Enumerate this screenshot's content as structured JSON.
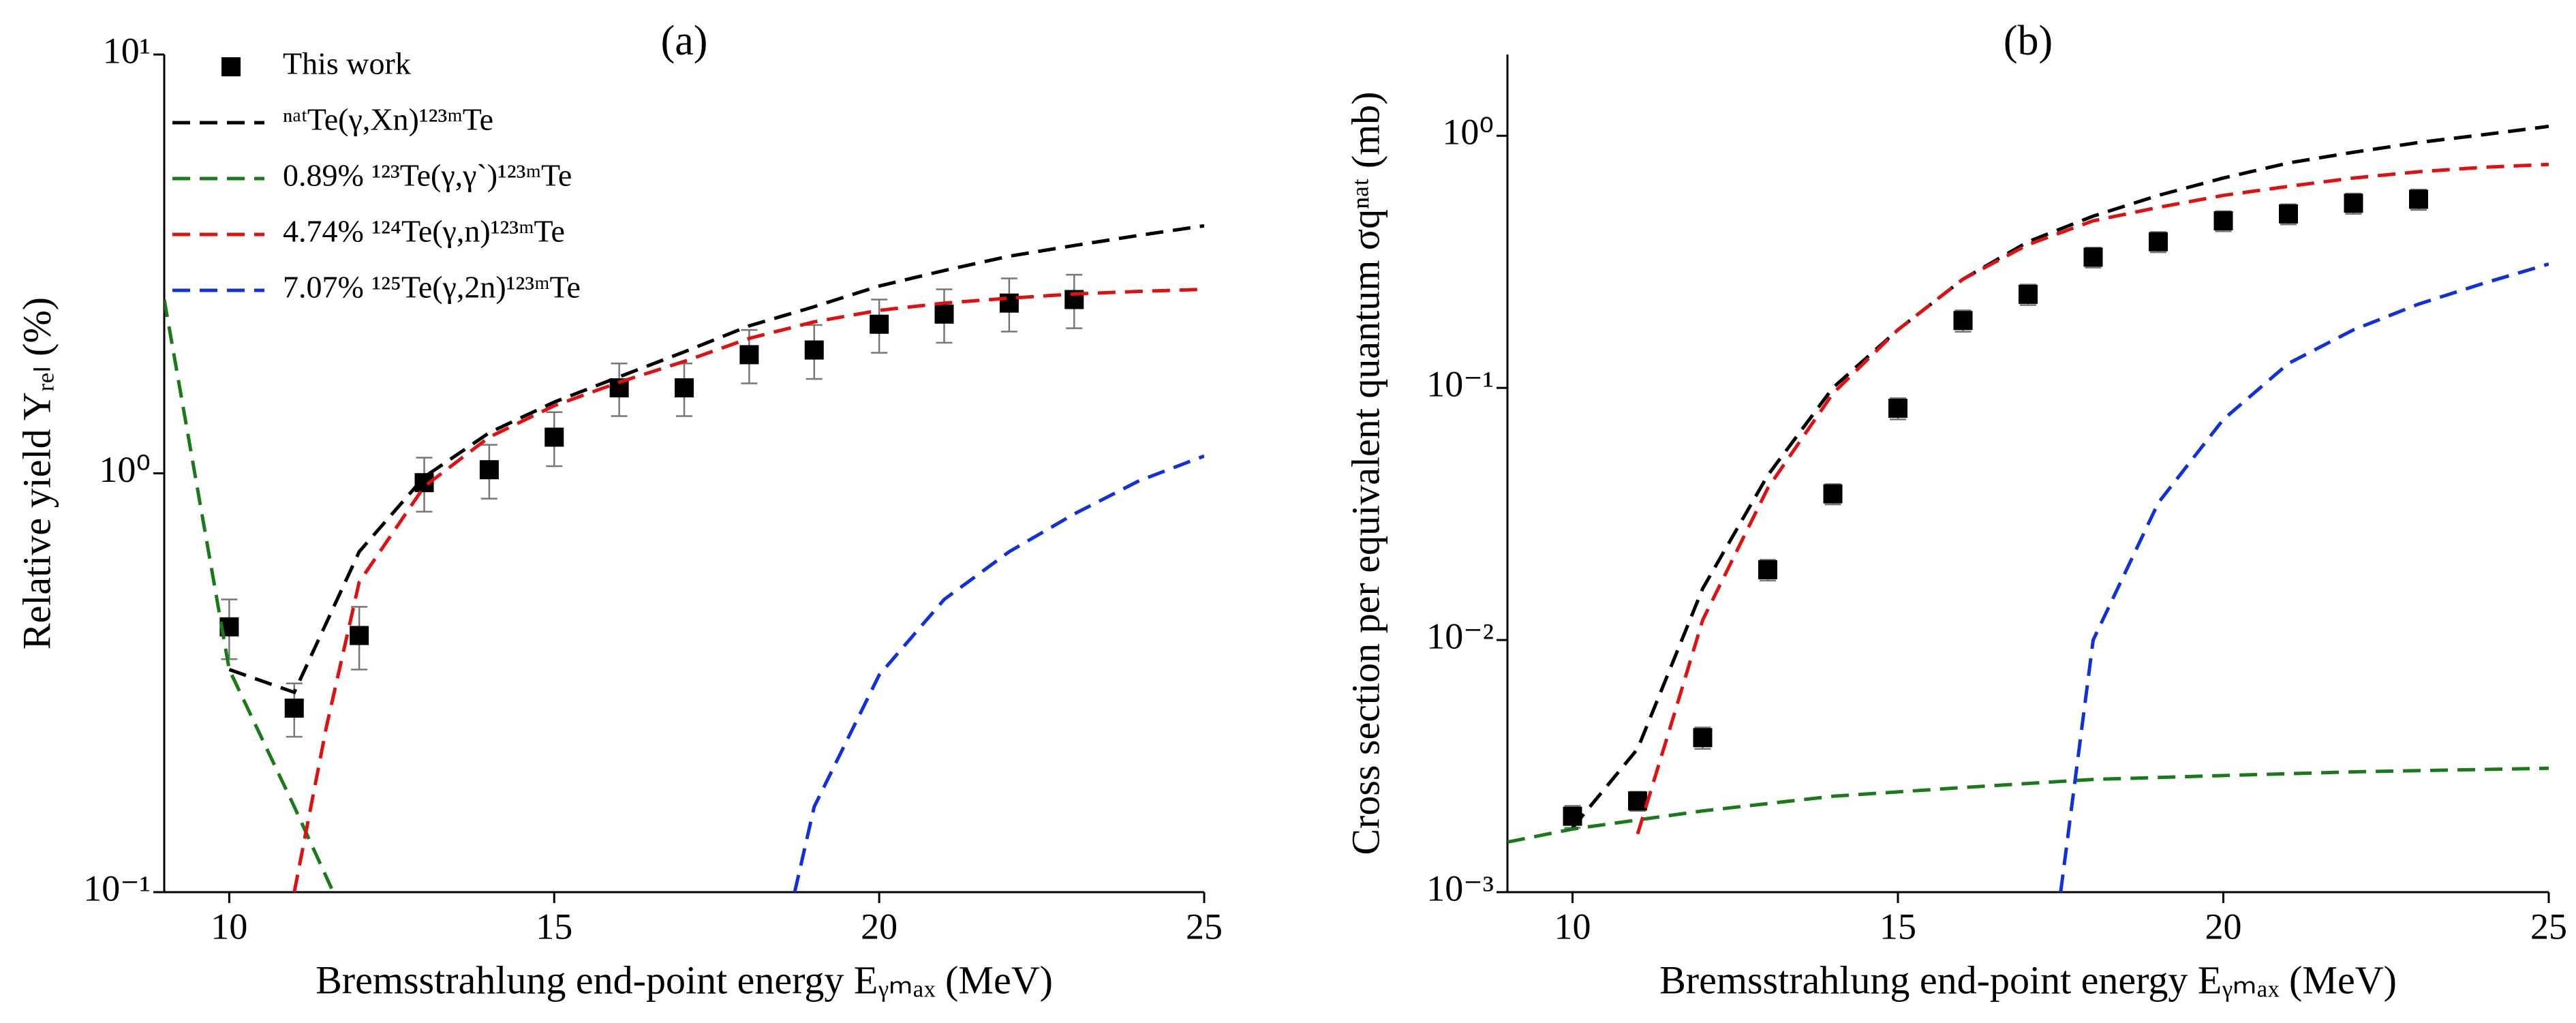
{
  "chart_data": [
    {
      "type": "line",
      "title": "(a)",
      "x_label": "Bremsstrahlung end-point energy Eᵧₘₐₓ (MeV)",
      "y_label": "Relative yield Yᵣₑₗ (%)",
      "xlim": [
        9,
        25
      ],
      "xticks": [
        10,
        15,
        20,
        25
      ],
      "ylim": [
        0.1,
        10
      ],
      "log_y": true,
      "yticks": [
        {
          "value": 0.1,
          "label": "10⁻¹"
        },
        {
          "value": 1,
          "label": "10⁰"
        },
        {
          "value": 10,
          "label": "10¹"
        }
      ],
      "legend": "upper left",
      "series": [
        {
          "name": "This work",
          "style": "points",
          "color": "#000000",
          "x": [
            10,
            11,
            12,
            13,
            14,
            15,
            16,
            17,
            18,
            19,
            20,
            21,
            22,
            23
          ],
          "values": [
            0.43,
            0.275,
            0.41,
            0.95,
            1.02,
            1.22,
            1.6,
            1.6,
            1.92,
            1.97,
            2.27,
            2.4,
            2.55,
            2.6
          ],
          "errors": [
            0.07,
            0.04,
            0.07,
            0.14,
            0.15,
            0.18,
            0.23,
            0.23,
            0.28,
            0.29,
            0.33,
            0.35,
            0.37,
            0.38
          ]
        },
        {
          "name": "ⁿᵃᵗTe(γ,Xn)¹²³ᵐTe",
          "style": "dashed",
          "color": "#000000",
          "x": [
            10,
            11,
            12,
            13,
            14,
            15,
            16,
            17,
            18,
            19,
            20,
            21,
            22,
            23,
            24,
            25
          ],
          "values": [
            0.34,
            0.3,
            0.65,
            0.98,
            1.25,
            1.48,
            1.7,
            1.95,
            2.25,
            2.5,
            2.8,
            3.05,
            3.3,
            3.5,
            3.7,
            3.9
          ]
        },
        {
          "name": "0.89% ¹²³Te(γ,γ`)¹²³ᵐTe",
          "style": "dashed",
          "color": "#1a7a1a",
          "x": [
            9,
            10,
            11,
            11.6
          ],
          "values": [
            2.6,
            0.34,
            0.16,
            0.1
          ]
        },
        {
          "name": "4.74% ¹²⁴Te(γ,n)¹²³ᵐTe",
          "style": "dashed",
          "color": "#e01010",
          "x": [
            11,
            11.5,
            12,
            13,
            14,
            15,
            16,
            17,
            18,
            19,
            20,
            21,
            22,
            23,
            24,
            25
          ],
          "values": [
            0.1,
            0.25,
            0.55,
            0.93,
            1.22,
            1.45,
            1.65,
            1.85,
            2.1,
            2.3,
            2.45,
            2.55,
            2.62,
            2.68,
            2.72,
            2.75
          ]
        },
        {
          "name": "7.07% ¹²⁵Te(γ,2n)¹²³ᵐTe",
          "style": "dashed",
          "color": "#1030e0",
          "x": [
            18.7,
            19,
            20,
            21,
            22,
            23,
            24,
            25
          ],
          "values": [
            0.1,
            0.16,
            0.33,
            0.5,
            0.65,
            0.8,
            0.96,
            1.1
          ]
        }
      ]
    },
    {
      "type": "line",
      "title": "(b)",
      "x_label": "Bremsstrahlung end-point energy Eᵧₘₐₓ (MeV)",
      "y_label": "Cross section per equivalent quantum σqⁿᵃᵗ (mb)",
      "xlim": [
        9,
        25
      ],
      "xticks": [
        10,
        15,
        20,
        25
      ],
      "ylim": [
        0.001,
        2.1
      ],
      "log_y": true,
      "yticks": [
        {
          "value": 0.001,
          "label": "10⁻³"
        },
        {
          "value": 0.01,
          "label": "10⁻²"
        },
        {
          "value": 0.1,
          "label": "10⁻¹"
        },
        {
          "value": 1,
          "label": "10⁰"
        }
      ],
      "series": [
        {
          "style": "points",
          "color": "#000000",
          "x": [
            10,
            11,
            12,
            13,
            14,
            15,
            16,
            17,
            18,
            19,
            20,
            21,
            22,
            23
          ],
          "values": [
            0.002,
            0.0023,
            0.0041,
            0.019,
            0.038,
            0.083,
            0.185,
            0.235,
            0.33,
            0.38,
            0.46,
            0.49,
            0.54,
            0.56
          ],
          "errors": [
            0.0002,
            0.0002,
            0.0004,
            0.0018,
            0.0035,
            0.008,
            0.018,
            0.022,
            0.03,
            0.035,
            0.042,
            0.045,
            0.05,
            0.052
          ]
        },
        {
          "style": "dashed",
          "color": "#000000",
          "x": [
            10,
            11,
            12,
            13,
            14,
            15,
            16,
            17,
            18,
            19,
            20,
            21,
            22,
            23,
            24,
            25
          ],
          "values": [
            0.0018,
            0.0037,
            0.016,
            0.045,
            0.1,
            0.17,
            0.27,
            0.38,
            0.48,
            0.58,
            0.68,
            0.78,
            0.86,
            0.94,
            1.01,
            1.09
          ]
        },
        {
          "style": "dashed",
          "color": "#1a7a1a",
          "x": [
            9,
            10,
            12,
            14,
            16,
            18,
            20,
            22,
            25
          ],
          "values": [
            0.00158,
            0.00178,
            0.0021,
            0.0024,
            0.0026,
            0.0028,
            0.0029,
            0.003,
            0.0031
          ]
        },
        {
          "style": "dashed",
          "color": "#e01010",
          "x": [
            11,
            11.5,
            12,
            13,
            14,
            15,
            16,
            17,
            18,
            19,
            20,
            21,
            22,
            23,
            24,
            25
          ],
          "values": [
            0.0017,
            0.0045,
            0.012,
            0.04,
            0.095,
            0.17,
            0.27,
            0.37,
            0.46,
            0.52,
            0.58,
            0.63,
            0.68,
            0.72,
            0.75,
            0.77
          ]
        },
        {
          "style": "dashed",
          "color": "#1030e0",
          "x": [
            17.5,
            18,
            19,
            20,
            21,
            22,
            23,
            24,
            25
          ],
          "values": [
            0.001,
            0.01,
            0.035,
            0.075,
            0.125,
            0.17,
            0.215,
            0.26,
            0.31
          ]
        }
      ]
    }
  ]
}
